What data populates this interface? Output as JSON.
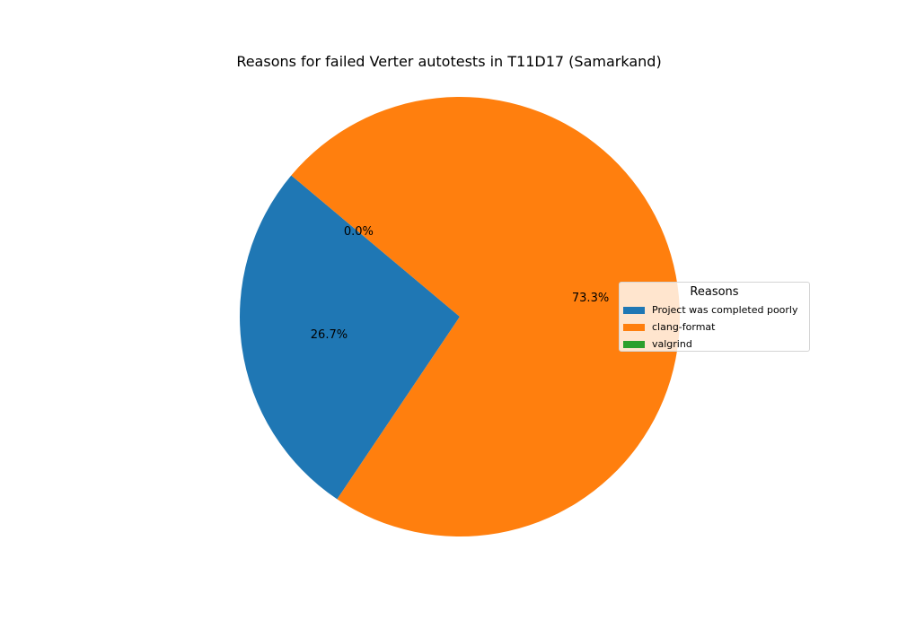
{
  "chart_data": {
    "type": "pie",
    "title": "Reasons for failed Verter autotests in T11D17 (Samarkand)",
    "legend_title": "Reasons",
    "legend_position": "center-right",
    "slices": [
      {
        "label": "Project was completed poorly",
        "value": 26.7,
        "pct_label": "26.7%",
        "color": "#1f77b4"
      },
      {
        "label": "clang-format",
        "value": 73.3,
        "pct_label": "73.3%",
        "color": "#ff7f0e"
      },
      {
        "label": "valgrind",
        "value": 0.0,
        "pct_label": "0.0%",
        "color": "#2ca02c"
      }
    ]
  }
}
